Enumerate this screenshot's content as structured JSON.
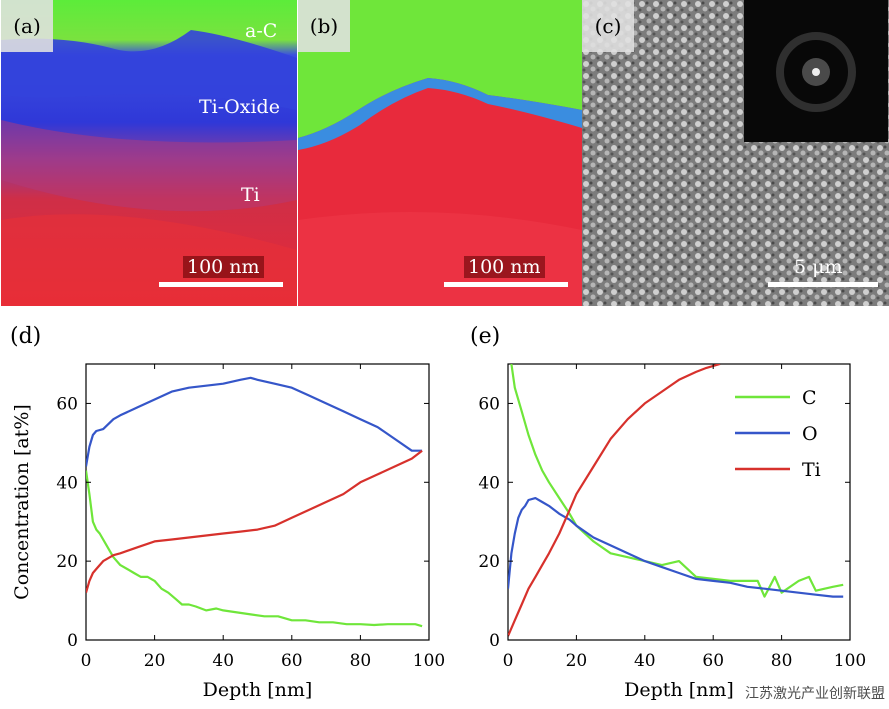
{
  "panels": {
    "a": {
      "label": "(a)",
      "labels": [
        "a-C",
        "Ti-Oxide",
        "Ti"
      ],
      "scale": "100 nm"
    },
    "b": {
      "label": "(b)",
      "scale": "100 nm"
    },
    "c": {
      "label": "(c)",
      "scale": "5 μm"
    }
  },
  "colors": {
    "C": "#6fe63a",
    "O": "#3556c9",
    "Ti": "#d7312c"
  },
  "watermark": "江苏激光产业创新联盟",
  "chart_data": [
    {
      "id": "d",
      "label": "(d)",
      "type": "line",
      "xlabel": "Depth [nm]",
      "ylabel": "Concentration [at%]",
      "xlim": [
        0,
        100
      ],
      "ylim": [
        0,
        70
      ],
      "xticks": [
        0,
        20,
        40,
        60,
        80,
        100
      ],
      "yticks": [
        0,
        20,
        40,
        60
      ],
      "series": [
        {
          "name": "C",
          "color": "#6fe63a",
          "x": [
            0,
            1,
            2,
            3,
            4,
            6,
            8,
            10,
            12,
            14,
            16,
            18,
            20,
            22,
            24,
            26,
            28,
            30,
            32,
            35,
            38,
            40,
            44,
            48,
            52,
            56,
            60,
            64,
            68,
            72,
            76,
            80,
            84,
            88,
            92,
            96,
            98
          ],
          "y": [
            43,
            37,
            30,
            28,
            27,
            24,
            21,
            19,
            18,
            17,
            16,
            16,
            15,
            13,
            12,
            10.5,
            9,
            9,
            8.5,
            7.5,
            8,
            7.5,
            7,
            6.5,
            6,
            6,
            5,
            5,
            4.5,
            4.5,
            4,
            4,
            3.8,
            4,
            4,
            4,
            3.5
          ]
        },
        {
          "name": "O",
          "color": "#3556c9",
          "x": [
            0,
            1,
            2,
            3,
            5,
            8,
            10,
            15,
            20,
            25,
            30,
            35,
            40,
            45,
            48,
            50,
            55,
            60,
            65,
            70,
            75,
            80,
            85,
            90,
            95,
            98
          ],
          "y": [
            44,
            49,
            52,
            53,
            53.5,
            56,
            57,
            59,
            61,
            63,
            64,
            64.5,
            65,
            66,
            66.5,
            66,
            65,
            64,
            62,
            60,
            58,
            56,
            54,
            51,
            48,
            48
          ]
        },
        {
          "name": "Ti",
          "color": "#d7312c",
          "x": [
            0,
            1,
            2,
            3,
            5,
            8,
            10,
            15,
            20,
            25,
            30,
            35,
            40,
            45,
            50,
            55,
            60,
            65,
            70,
            75,
            80,
            85,
            90,
            95,
            98
          ],
          "y": [
            12,
            15,
            17,
            18,
            20,
            21.5,
            22,
            23.5,
            25,
            25.5,
            26,
            26.5,
            27,
            27.5,
            28,
            29,
            31,
            33,
            35,
            37,
            40,
            42,
            44,
            46,
            48
          ]
        }
      ]
    },
    {
      "id": "e",
      "label": "(e)",
      "type": "line",
      "xlabel": "Depth [nm]",
      "xlim": [
        0,
        100
      ],
      "ylim": [
        0,
        70
      ],
      "xticks": [
        0,
        20,
        40,
        60,
        80,
        100
      ],
      "yticks": [
        0,
        20,
        40,
        60
      ],
      "legend": "top-right",
      "series": [
        {
          "name": "C",
          "color": "#6fe63a",
          "x": [
            1,
            2,
            4,
            6,
            8,
            10,
            12,
            15,
            18,
            20,
            25,
            30,
            35,
            40,
            45,
            50,
            55,
            60,
            65,
            70,
            73,
            75,
            78,
            80,
            85,
            88,
            90,
            95,
            98
          ],
          "y": [
            70,
            64,
            58,
            52,
            47,
            43,
            40,
            36,
            32,
            29,
            25,
            22,
            21,
            20,
            19,
            20,
            16,
            15.5,
            15,
            15,
            15,
            11,
            16,
            12,
            15,
            16,
            12.5,
            13.5,
            14
          ]
        },
        {
          "name": "O",
          "color": "#3556c9",
          "x": [
            0,
            1,
            2,
            3,
            4,
            5,
            6,
            8,
            10,
            12,
            15,
            18,
            20,
            25,
            30,
            35,
            40,
            45,
            50,
            55,
            60,
            65,
            70,
            75,
            80,
            85,
            90,
            95,
            98
          ],
          "y": [
            13,
            22,
            27,
            31,
            33,
            34,
            35.5,
            36,
            35,
            34,
            32,
            30.5,
            29,
            26,
            24,
            22,
            20,
            18.5,
            17,
            15.5,
            15,
            14.5,
            13.5,
            13,
            12.5,
            12,
            11.5,
            11,
            11
          ]
        },
        {
          "name": "Ti",
          "color": "#d7312c",
          "x": [
            0,
            2,
            4,
            6,
            8,
            10,
            12,
            15,
            18,
            20,
            25,
            30,
            35,
            40,
            45,
            50,
            55,
            58,
            62
          ],
          "y": [
            1,
            5,
            9,
            13,
            16,
            19,
            22,
            27,
            33,
            37,
            44,
            51,
            56,
            60,
            63,
            66,
            68,
            69,
            70
          ]
        }
      ]
    }
  ]
}
